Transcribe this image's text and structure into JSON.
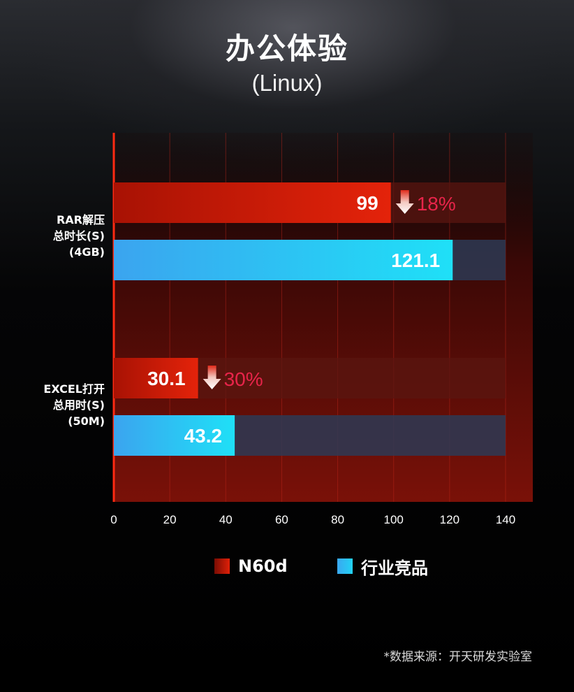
{
  "title": "办公体验",
  "subtitle": "(Linux)",
  "footnote": "*数据来源：开天研发实验室",
  "colors": {
    "n60d": "#d81e06",
    "competitor": "#22d3f5",
    "decrease_text": "#e8244a"
  },
  "chart_data": {
    "type": "bar",
    "orientation": "horizontal",
    "title": "办公体验",
    "subtitle": "(Linux)",
    "categories": [
      [
        "RAR解压",
        "总时长(S)",
        "(4GB)"
      ],
      [
        "EXCEL打开",
        "总用时(S)",
        "(50M)"
      ]
    ],
    "series": [
      {
        "name": "N60d",
        "values": [
          99,
          30.1
        ],
        "value_labels": [
          "99",
          "30.1"
        ]
      },
      {
        "name": "行业竞品",
        "values": [
          121.1,
          43.2
        ],
        "value_labels": [
          "121.1",
          "43.2"
        ]
      }
    ],
    "annotations": [
      {
        "category_index": 0,
        "series": "N60d",
        "text": "18%",
        "icon": "down-arrow-icon"
      },
      {
        "category_index": 1,
        "series": "N60d",
        "text": "30%",
        "icon": "down-arrow-icon"
      }
    ],
    "xlim": [
      0,
      140
    ],
    "x_ticks": [
      0,
      20,
      40,
      60,
      80,
      100,
      120,
      140
    ],
    "grid": true,
    "legend_position": "bottom-center"
  }
}
